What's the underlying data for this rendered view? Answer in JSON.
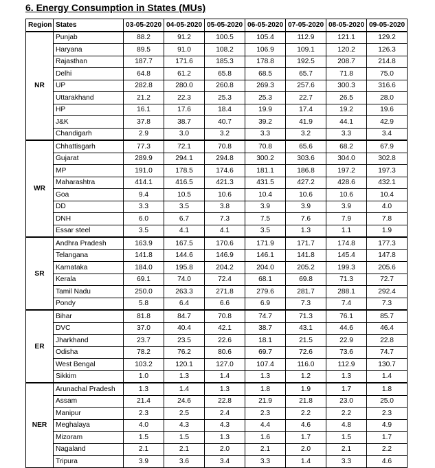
{
  "title": "6. Energy Consumption in States (MUs)",
  "header": {
    "region": "Region",
    "states": "States",
    "dates": [
      "03-05-2020",
      "04-05-2020",
      "05-05-2020",
      "06-05-2020",
      "07-05-2020",
      "08-05-2020",
      "09-05-2020"
    ]
  },
  "regions": [
    {
      "name": "NR",
      "states": [
        {
          "name": "Punjab",
          "values": [
            "88.2",
            "91.2",
            "100.5",
            "105.4",
            "112.9",
            "121.1",
            "129.2"
          ]
        },
        {
          "name": "Haryana",
          "values": [
            "89.5",
            "91.0",
            "108.2",
            "106.9",
            "109.1",
            "120.2",
            "126.3"
          ]
        },
        {
          "name": "Rajasthan",
          "values": [
            "187.7",
            "171.6",
            "185.3",
            "178.8",
            "192.5",
            "208.7",
            "214.8"
          ]
        },
        {
          "name": "Delhi",
          "values": [
            "64.8",
            "61.2",
            "65.8",
            "68.5",
            "65.7",
            "71.8",
            "75.0"
          ]
        },
        {
          "name": "UP",
          "values": [
            "282.8",
            "280.0",
            "260.8",
            "269.3",
            "257.6",
            "300.3",
            "316.6"
          ]
        },
        {
          "name": "Uttarakhand",
          "values": [
            "21.2",
            "22.3",
            "25.3",
            "25.3",
            "22.7",
            "26.5",
            "28.0"
          ]
        },
        {
          "name": "HP",
          "values": [
            "16.1",
            "17.6",
            "18.4",
            "19.9",
            "17.4",
            "19.2",
            "19.6"
          ]
        },
        {
          "name": "J&K",
          "values": [
            "37.8",
            "38.7",
            "40.7",
            "39.2",
            "41.9",
            "44.1",
            "42.9"
          ]
        },
        {
          "name": "Chandigarh",
          "values": [
            "2.9",
            "3.0",
            "3.2",
            "3.3",
            "3.2",
            "3.3",
            "3.4"
          ]
        }
      ]
    },
    {
      "name": "WR",
      "states": [
        {
          "name": "Chhattisgarh",
          "values": [
            "77.3",
            "72.1",
            "70.8",
            "70.8",
            "65.6",
            "68.2",
            "67.9"
          ]
        },
        {
          "name": "Gujarat",
          "values": [
            "289.9",
            "294.1",
            "294.8",
            "300.2",
            "303.6",
            "304.0",
            "302.8"
          ]
        },
        {
          "name": "MP",
          "values": [
            "191.0",
            "178.5",
            "174.6",
            "181.1",
            "186.8",
            "197.2",
            "197.3"
          ]
        },
        {
          "name": "Maharashtra",
          "values": [
            "414.1",
            "416.5",
            "421.3",
            "431.5",
            "427.2",
            "428.6",
            "432.1"
          ]
        },
        {
          "name": "Goa",
          "values": [
            "9.4",
            "10.5",
            "10.6",
            "10.4",
            "10.6",
            "10.6",
            "10.4"
          ]
        },
        {
          "name": "DD",
          "values": [
            "3.3",
            "3.5",
            "3.8",
            "3.9",
            "3.9",
            "3.9",
            "4.0"
          ]
        },
        {
          "name": "DNH",
          "values": [
            "6.0",
            "6.7",
            "7.3",
            "7.5",
            "7.6",
            "7.9",
            "7.8"
          ]
        },
        {
          "name": "Essar steel",
          "values": [
            "3.5",
            "4.1",
            "4.1",
            "3.5",
            "1.3",
            "1.1",
            "1.9"
          ]
        }
      ]
    },
    {
      "name": "SR",
      "states": [
        {
          "name": "Andhra Pradesh",
          "values": [
            "163.9",
            "167.5",
            "170.6",
            "171.9",
            "171.7",
            "174.8",
            "177.3"
          ]
        },
        {
          "name": "Telangana",
          "values": [
            "141.8",
            "144.6",
            "146.9",
            "146.1",
            "141.8",
            "145.4",
            "147.8"
          ]
        },
        {
          "name": "Karnataka",
          "values": [
            "184.0",
            "195.8",
            "204.2",
            "204.0",
            "205.2",
            "199.3",
            "205.6"
          ]
        },
        {
          "name": "Kerala",
          "values": [
            "69.1",
            "74.0",
            "72.4",
            "68.1",
            "69.8",
            "71.3",
            "72.7"
          ]
        },
        {
          "name": "Tamil Nadu",
          "values": [
            "250.0",
            "263.3",
            "271.8",
            "279.6",
            "281.7",
            "288.1",
            "292.4"
          ]
        },
        {
          "name": "Pondy",
          "values": [
            "5.8",
            "6.4",
            "6.6",
            "6.9",
            "7.3",
            "7.4",
            "7.3"
          ]
        }
      ]
    },
    {
      "name": "ER",
      "states": [
        {
          "name": "Bihar",
          "values": [
            "81.8",
            "84.7",
            "70.8",
            "74.7",
            "71.3",
            "76.1",
            "85.7"
          ]
        },
        {
          "name": "DVC",
          "values": [
            "37.0",
            "40.4",
            "42.1",
            "38.7",
            "43.1",
            "44.6",
            "46.4"
          ]
        },
        {
          "name": "Jharkhand",
          "values": [
            "23.7",
            "23.5",
            "22.6",
            "18.1",
            "21.5",
            "22.9",
            "22.8"
          ]
        },
        {
          "name": "Odisha",
          "values": [
            "78.2",
            "76.2",
            "80.6",
            "69.7",
            "72.6",
            "73.6",
            "74.7"
          ]
        },
        {
          "name": "West Bengal",
          "values": [
            "103.2",
            "120.1",
            "127.0",
            "107.4",
            "116.0",
            "112.9",
            "130.7"
          ]
        },
        {
          "name": "Sikkim",
          "values": [
            "1.0",
            "1.3",
            "1.4",
            "1.3",
            "1.2",
            "1.3",
            "1.4"
          ]
        }
      ]
    },
    {
      "name": "NER",
      "states": [
        {
          "name": "Arunachal Pradesh",
          "values": [
            "1.3",
            "1.4",
            "1.3",
            "1.8",
            "1.9",
            "1.7",
            "1.8"
          ]
        },
        {
          "name": "Assam",
          "values": [
            "21.4",
            "24.6",
            "22.8",
            "21.9",
            "21.8",
            "23.0",
            "25.0"
          ]
        },
        {
          "name": "Manipur",
          "values": [
            "2.3",
            "2.5",
            "2.4",
            "2.3",
            "2.2",
            "2.2",
            "2.3"
          ]
        },
        {
          "name": "Meghalaya",
          "values": [
            "4.0",
            "4.3",
            "4.3",
            "4.4",
            "4.6",
            "4.8",
            "4.9"
          ]
        },
        {
          "name": "Mizoram",
          "values": [
            "1.5",
            "1.5",
            "1.3",
            "1.6",
            "1.7",
            "1.5",
            "1.7"
          ]
        },
        {
          "name": "Nagaland",
          "values": [
            "2.1",
            "2.1",
            "2.0",
            "2.1",
            "2.0",
            "2.1",
            "2.2"
          ]
        },
        {
          "name": "Tripura",
          "values": [
            "3.9",
            "3.6",
            "3.4",
            "3.3",
            "1.4",
            "3.3",
            "4.6"
          ]
        }
      ]
    }
  ]
}
